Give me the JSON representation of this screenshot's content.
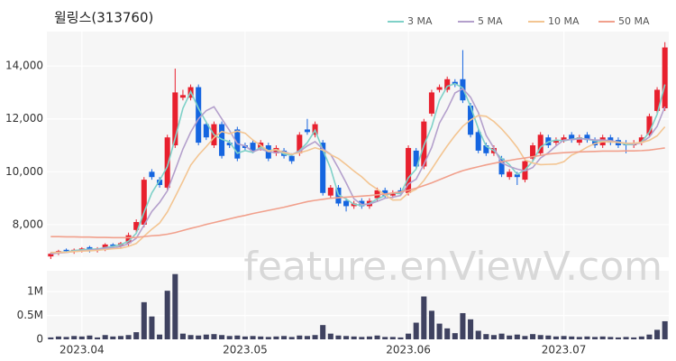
{
  "chart_data": [
    {
      "type": "candlestick",
      "title": "윌링스(313760)",
      "watermark": "feature.enViewV.com",
      "up_color": "#e8202e",
      "down_color": "#1565e0",
      "legend": "top-right",
      "grid": true,
      "ylim": [
        6770,
        15300
      ],
      "yticks": [
        {
          "value": 8000,
          "label": "8,000"
        },
        {
          "value": 10000,
          "label": "10,000"
        },
        {
          "value": 12000,
          "label": "12,000"
        },
        {
          "value": 14000,
          "label": "14,000"
        }
      ],
      "open": [
        6800,
        6950,
        7050,
        7000,
        7050,
        7150,
        7050,
        7100,
        7250,
        7200,
        7300,
        7800,
        8000,
        10000,
        9700,
        9400,
        11000,
        12800,
        12800,
        13200,
        11800,
        11000,
        11800,
        11100,
        11600,
        11000,
        11100,
        10900,
        11000,
        10700,
        10800,
        10600,
        10700,
        11600,
        11400,
        11100,
        9100,
        9400,
        8900,
        8700,
        8900,
        8700,
        9000,
        9300,
        9100,
        9300,
        9200,
        10800,
        10200,
        12200,
        13100,
        13100,
        13400,
        13500,
        12500,
        11500,
        11000,
        10700,
        10500,
        9800,
        9900,
        9700,
        10500,
        10700,
        11300,
        11100,
        11200,
        11400,
        11100,
        11400,
        11200,
        11000,
        11300,
        11200,
        11100,
        11000,
        11100,
        11400,
        12300,
        12400
      ],
      "high": [
        6950,
        7050,
        7100,
        7100,
        7150,
        7200,
        7150,
        7300,
        7300,
        7350,
        7700,
        8200,
        9800,
        10100,
        9800,
        11400,
        13900,
        13100,
        13300,
        13300,
        11900,
        11900,
        11900,
        11200,
        11700,
        11100,
        11200,
        11200,
        11100,
        11000,
        10900,
        10700,
        11500,
        12000,
        11900,
        11200,
        9500,
        9500,
        9000,
        8900,
        9000,
        9000,
        9400,
        9400,
        9300,
        9400,
        11000,
        10900,
        12000,
        13100,
        13300,
        13600,
        13500,
        14600,
        12600,
        11600,
        11100,
        11000,
        10600,
        10100,
        10000,
        10500,
        11100,
        11500,
        11400,
        11300,
        11400,
        11500,
        11400,
        11500,
        11300,
        11400,
        11400,
        11300,
        11200,
        11200,
        11400,
        12200,
        13200,
        14900
      ],
      "low": [
        6700,
        6850,
        6950,
        6900,
        6950,
        6950,
        6950,
        7000,
        7100,
        7100,
        7200,
        7700,
        7900,
        9700,
        9400,
        9300,
        10900,
        12700,
        12700,
        11000,
        11200,
        10900,
        10500,
        10900,
        10400,
        10800,
        10700,
        10800,
        10400,
        10600,
        10500,
        10300,
        10600,
        11400,
        11300,
        9100,
        9000,
        8700,
        8500,
        8600,
        8600,
        8600,
        8900,
        9000,
        9000,
        9100,
        9100,
        10100,
        10100,
        12100,
        13000,
        13000,
        13200,
        12600,
        11300,
        10700,
        10600,
        10600,
        9800,
        9700,
        9500,
        9600,
        10400,
        10600,
        10900,
        11000,
        11100,
        11100,
        11000,
        11100,
        10900,
        10900,
        11000,
        10900,
        10700,
        10900,
        11000,
        11300,
        12200,
        12300
      ],
      "close": [
        6900,
        7000,
        7000,
        7050,
        7100,
        7050,
        7100,
        7250,
        7200,
        7300,
        7600,
        8100,
        9700,
        9800,
        9500,
        11300,
        13000,
        12900,
        13200,
        11100,
        11300,
        11800,
        10600,
        11000,
        10500,
        10900,
        10800,
        11100,
        10500,
        10900,
        10600,
        10400,
        11400,
        11500,
        11800,
        9200,
        9400,
        8800,
        8700,
        8800,
        8700,
        8900,
        9300,
        9100,
        9200,
        9200,
        10900,
        10200,
        11900,
        13000,
        13200,
        13500,
        13300,
        12700,
        11400,
        10800,
        10700,
        10900,
        9900,
        10000,
        9800,
        10400,
        11000,
        11400,
        11000,
        11200,
        11300,
        11200,
        11300,
        11200,
        11000,
        11300,
        11100,
        11000,
        11000,
        11100,
        11300,
        12100,
        13100,
        14700
      ],
      "series": [
        {
          "name": "3 MA",
          "color": "#7fd1c8",
          "values": [
            6900,
            6950,
            6970,
            7020,
            7050,
            7070,
            7080,
            7130,
            7180,
            7250,
            7370,
            7670,
            8470,
            9200,
            9670,
            10200,
            11270,
            12400,
            13030,
            12400,
            11870,
            11400,
            11230,
            11130,
            10700,
            10800,
            10730,
            10930,
            10800,
            10830,
            10670,
            10630,
            10800,
            11100,
            11570,
            10830,
            10130,
            9130,
            8970,
            8770,
            8730,
            8800,
            8970,
            9100,
            9200,
            9170,
            9770,
            10100,
            11000,
            11700,
            12700,
            13230,
            13330,
            13170,
            12470,
            11630,
            10970,
            10800,
            10500,
            10270,
            9900,
            10070,
            10400,
            10930,
            11130,
            11200,
            11170,
            11230,
            11270,
            11230,
            11170,
            11170,
            11130,
            11130,
            11030,
            11030,
            11130,
            11500,
            12170,
            13300
          ]
        },
        {
          "name": "5 MA",
          "color": "#b4a0cc",
          "values": [
            6900,
            6930,
            6950,
            6990,
            7010,
            7040,
            7060,
            7110,
            7130,
            7180,
            7280,
            7490,
            7980,
            8500,
            8840,
            9280,
            10060,
            10860,
            11500,
            12000,
            12310,
            12460,
            12000,
            11560,
            11060,
            10980,
            10760,
            10860,
            10760,
            10720,
            10760,
            10660,
            10760,
            10980,
            11140,
            10860,
            10660,
            10140,
            9580,
            8980,
            8760,
            8780,
            8880,
            9000,
            9040,
            9100,
            9540,
            9720,
            10280,
            10920,
            11840,
            12360,
            12980,
            13140,
            12820,
            12240,
            11380,
            10900,
            10340,
            10200,
            10100,
            10030,
            10160,
            10520,
            10720,
            10980,
            11200,
            11220,
            11240,
            11240,
            11200,
            11200,
            11180,
            11120,
            11080,
            11040,
            11100,
            11320,
            11720,
            12460
          ]
        },
        {
          "name": "10 MA",
          "color": "#f3c592",
          "values": [
            6950,
            6950,
            6960,
            6980,
            7000,
            7010,
            7030,
            7060,
            7090,
            7110,
            7180,
            7290,
            7560,
            7830,
            8060,
            8480,
            9050,
            9640,
            10250,
            10630,
            10950,
            11290,
            11520,
            11440,
            11540,
            11460,
            11200,
            11000,
            10780,
            10840,
            10730,
            10660,
            10720,
            10800,
            10910,
            10820,
            10650,
            10500,
            10270,
            10030,
            9810,
            9540,
            9340,
            9130,
            8930,
            8940,
            9200,
            9340,
            9670,
            10100,
            10550,
            10980,
            11370,
            11720,
            11960,
            12130,
            12100,
            11900,
            11620,
            11290,
            10920,
            10450,
            10330,
            10270,
            10280,
            10290,
            10380,
            10630,
            10760,
            10930,
            11070,
            11140,
            11130,
            11110,
            11080,
            11080,
            11110,
            11190,
            11360,
            11700
          ]
        },
        {
          "name": "50 MA",
          "color": "#f1a08c",
          "values": [
            7550,
            7550,
            7540,
            7540,
            7530,
            7530,
            7520,
            7520,
            7510,
            7510,
            7510,
            7520,
            7550,
            7580,
            7600,
            7640,
            7700,
            7780,
            7860,
            7930,
            8010,
            8080,
            8150,
            8220,
            8290,
            8350,
            8420,
            8480,
            8540,
            8600,
            8660,
            8730,
            8800,
            8870,
            8920,
            8960,
            9000,
            9020,
            9040,
            9060,
            9080,
            9100,
            9130,
            9160,
            9200,
            9240,
            9300,
            9380,
            9480,
            9580,
            9700,
            9820,
            9940,
            10040,
            10120,
            10190,
            10260,
            10320,
            10380,
            10430,
            10480,
            10520,
            10570,
            10620,
            10670,
            10700,
            10720,
            10740,
            10750,
            10760,
            10770,
            10780,
            10780,
            10780,
            10790,
            10790,
            10800,
            10820,
            10860,
            10900
          ]
        }
      ]
    },
    {
      "type": "bar",
      "color": "#3f4260",
      "grid": true,
      "ylim": [
        0,
        1440000
      ],
      "yticks": [
        0,
        {
          "value": 500000,
          "label": "0.5M"
        },
        {
          "value": 1000000,
          "label": "1M"
        }
      ],
      "categories": [
        null,
        null,
        null,
        null,
        "2023.04",
        null,
        null,
        null,
        null,
        null,
        null,
        null,
        null,
        null,
        null,
        null,
        null,
        null,
        null,
        null,
        null,
        null,
        null,
        null,
        null,
        "2023.05",
        null,
        null,
        null,
        null,
        null,
        null,
        null,
        null,
        null,
        null,
        null,
        null,
        null,
        null,
        null,
        null,
        null,
        null,
        null,
        null,
        "2023.06",
        null,
        null,
        null,
        null,
        null,
        null,
        null,
        null,
        null,
        null,
        null,
        null,
        null,
        null,
        null,
        null,
        null,
        null,
        null,
        "2023.07",
        null,
        null,
        null,
        null,
        null,
        null,
        null,
        null,
        null,
        null,
        null,
        null,
        null
      ],
      "values": [
        40000,
        60000,
        50000,
        70000,
        60000,
        80000,
        40000,
        90000,
        60000,
        70000,
        90000,
        150000,
        780000,
        480000,
        100000,
        1020000,
        1370000,
        120000,
        90000,
        80000,
        100000,
        110000,
        90000,
        70000,
        80000,
        60000,
        70000,
        60000,
        50000,
        60000,
        70000,
        50000,
        80000,
        70000,
        90000,
        300000,
        120000,
        80000,
        70000,
        60000,
        50000,
        60000,
        80000,
        50000,
        50000,
        40000,
        120000,
        350000,
        900000,
        600000,
        330000,
        230000,
        130000,
        550000,
        420000,
        180000,
        110000,
        90000,
        120000,
        80000,
        100000,
        70000,
        110000,
        90000,
        80000,
        60000,
        70000,
        60000,
        50000,
        60000,
        50000,
        60000,
        50000,
        40000,
        50000,
        40000,
        60000,
        100000,
        200000,
        380000
      ]
    }
  ]
}
